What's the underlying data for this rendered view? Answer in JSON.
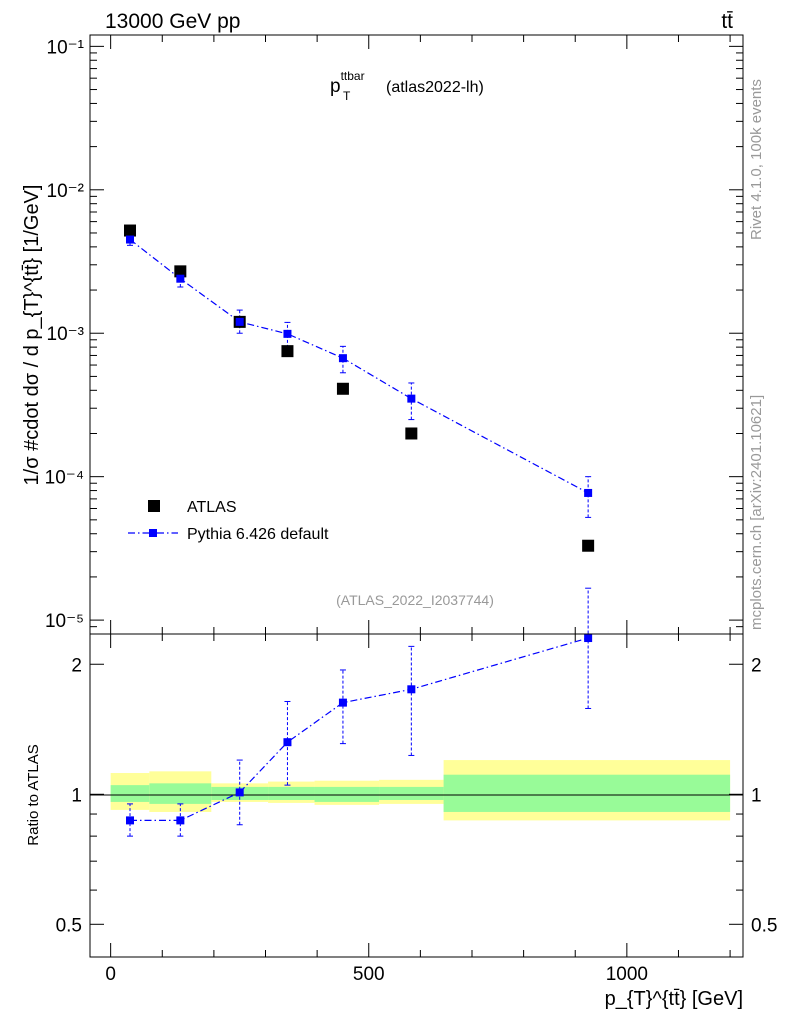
{
  "header": {
    "energy_label": "13000 GeV pp",
    "process_label": "tt̄"
  },
  "side_labels": {
    "rivet": "Rivet 4.1.0,  100k events",
    "source": "mcplots.cern.ch [arXiv:2401.10621]"
  },
  "colors": {
    "data": "#000000",
    "mc": "#0000ff",
    "band_inner": "#98fb98",
    "band_outer": "#ffff99",
    "reference": "#888888"
  },
  "chart_data": [
    {
      "type": "scatter",
      "panel": "main",
      "title": "p_T^ttbar (atlas2022-lh)",
      "title_main": "p",
      "title_sub": "T",
      "title_sup": "ttbar",
      "title_suffix": "(atlas2022-lh)",
      "ylabel": "1/σ #cdot dσ / d p_{T}^{tt̄} [1/GeV]",
      "yscale": "log",
      "ylim": [
        8e-06,
        0.12
      ],
      "xlim": [
        -40,
        1225
      ],
      "ytick_labels": [
        "10⁻⁵",
        "10⁻⁴",
        "10⁻³",
        "10⁻²",
        "10⁻¹"
      ],
      "reference_label": "(ATLAS_2022_I2037744)",
      "legend_position": "lower-left",
      "series": [
        {
          "name": "ATLAS",
          "style": "markers",
          "x": [
            37.5,
            135,
            250,
            342.5,
            450,
            582.5,
            925
          ],
          "y": [
            0.0052,
            0.0027,
            0.0012,
            0.00075,
            0.00041,
            0.0002,
            3.3e-05
          ]
        },
        {
          "name": "Pythia 6.426 default",
          "style": "markers+dashdot",
          "x": [
            37.5,
            135,
            250,
            342.5,
            450,
            582.5,
            925
          ],
          "y": [
            0.0045,
            0.0024,
            0.0012,
            0.00099,
            0.00067,
            0.00035,
            7.7e-05
          ],
          "y_err_low": [
            0.0004,
            0.0003,
            0.0002,
            0.0002,
            0.00014,
            0.0001,
            2.5e-05
          ],
          "y_err_high": [
            0.0004,
            0.0003,
            0.00025,
            0.0002,
            0.00014,
            0.0001,
            2.3e-05
          ]
        }
      ]
    },
    {
      "type": "scatter",
      "panel": "ratio",
      "ylabel": "Ratio to ATLAS",
      "xlabel": "p_{T}^{tt̄} [GeV]",
      "yscale": "log",
      "ylim": [
        0.42,
        2.35
      ],
      "xlim": [
        -40,
        1225
      ],
      "ytick_labels": [
        "0.5",
        "1",
        "2"
      ],
      "yticks": [
        0.5,
        1,
        2
      ],
      "xtick_labels": [
        "0",
        "500",
        "1000"
      ],
      "xticks": [
        0,
        500,
        1000
      ],
      "bands": {
        "x_edges": [
          0,
          75,
          195,
          305,
          395,
          520,
          645,
          1200
        ],
        "inner_low": [
          0.96,
          0.95,
          0.97,
          0.97,
          0.96,
          0.97,
          0.91
        ],
        "inner_high": [
          1.05,
          1.06,
          1.04,
          1.04,
          1.04,
          1.04,
          1.11
        ],
        "outer_low": [
          0.92,
          0.91,
          0.96,
          0.955,
          0.945,
          0.95,
          0.87
        ],
        "outer_high": [
          1.12,
          1.13,
          1.06,
          1.07,
          1.075,
          1.08,
          1.2
        ]
      },
      "series": [
        {
          "name": "Pythia 6.426 default",
          "x": [
            37.5,
            135,
            250,
            342.5,
            450,
            582.5,
            925
          ],
          "y": [
            0.87,
            0.87,
            1.01,
            1.32,
            1.63,
            1.75,
            2.3
          ],
          "y_err_low": [
            0.07,
            0.07,
            0.16,
            0.27,
            0.32,
            0.52,
            0.72
          ],
          "y_err_high": [
            0.08,
            0.08,
            0.19,
            0.32,
            0.31,
            0.45,
            0.7
          ]
        }
      ]
    }
  ]
}
